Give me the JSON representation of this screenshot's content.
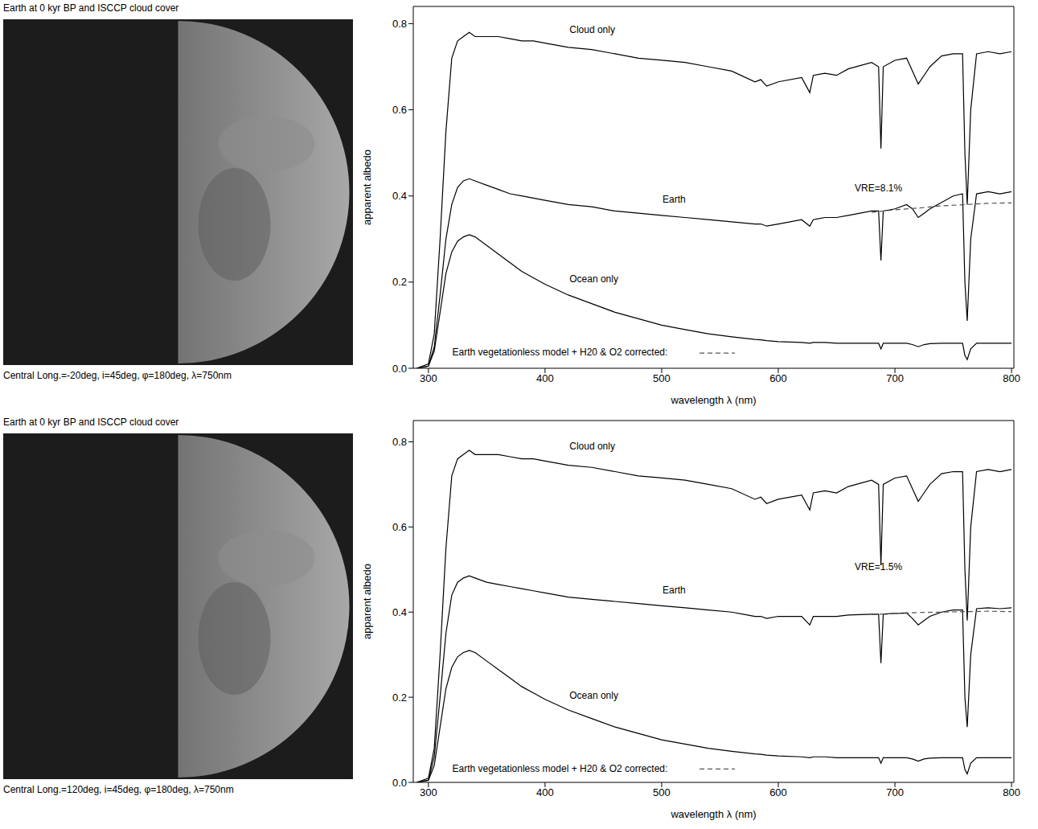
{
  "images": [
    {
      "title": "Earth at 0 kyr BP and ISCCP cloud cover",
      "caption": "Central Long.=-20deg, i=45deg, φ=180deg, λ=750nm"
    },
    {
      "title": "Earth at 0 kyr BP and ISCCP cloud cover",
      "caption": "Central Long.=120deg, i=45deg, φ=180deg, λ=750nm"
    }
  ],
  "chart_data": [
    {
      "type": "line",
      "x_label": "wavelength λ (nm)",
      "y_label": "apparent albedo",
      "xlim": [
        287,
        802
      ],
      "xticks": [
        300,
        400,
        500,
        600,
        700,
        800
      ],
      "ylim": [
        0,
        0.84
      ],
      "yticks": [
        {
          "value": 0,
          "label": "0.0"
        },
        0.2,
        0.4,
        0.6,
        0.8
      ],
      "grid": false,
      "annotations": [
        "VRE=8.1%"
      ],
      "x": [
        290,
        300,
        305,
        310,
        315,
        320,
        325,
        330,
        335,
        340,
        350,
        360,
        370,
        380,
        390,
        400,
        420,
        440,
        460,
        480,
        500,
        520,
        540,
        560,
        580,
        585,
        590,
        600,
        620,
        627,
        630,
        640,
        650,
        660,
        680,
        686,
        688,
        690,
        700,
        710,
        715,
        720,
        725,
        730,
        740,
        750,
        758,
        760,
        762,
        765,
        770,
        780,
        790,
        800
      ],
      "series": [
        {
          "name": "Cloud only",
          "color": "#000000",
          "line_style": "solid",
          "values": [
            0,
            0.01,
            0.08,
            0.3,
            0.55,
            0.72,
            0.76,
            0.77,
            0.78,
            0.77,
            0.77,
            0.77,
            0.765,
            0.76,
            0.76,
            0.755,
            0.745,
            0.74,
            0.73,
            0.72,
            0.715,
            0.71,
            0.7,
            0.69,
            0.665,
            0.67,
            0.655,
            0.665,
            0.675,
            0.64,
            0.68,
            0.685,
            0.68,
            0.695,
            0.71,
            0.7,
            0.51,
            0.7,
            0.715,
            0.72,
            0.69,
            0.66,
            0.68,
            0.7,
            0.725,
            0.73,
            0.73,
            0.5,
            0.38,
            0.6,
            0.73,
            0.735,
            0.73,
            0.735
          ]
        },
        {
          "name": "Earth",
          "color": "#000000",
          "line_style": "solid",
          "values": [
            0,
            0.005,
            0.05,
            0.17,
            0.3,
            0.38,
            0.42,
            0.435,
            0.44,
            0.435,
            0.425,
            0.415,
            0.405,
            0.4,
            0.395,
            0.39,
            0.38,
            0.375,
            0.365,
            0.36,
            0.355,
            0.35,
            0.345,
            0.34,
            0.335,
            0.335,
            0.33,
            0.335,
            0.345,
            0.33,
            0.345,
            0.35,
            0.35,
            0.355,
            0.365,
            0.365,
            0.25,
            0.365,
            0.37,
            0.38,
            0.37,
            0.35,
            0.36,
            0.37,
            0.385,
            0.4,
            0.405,
            0.2,
            0.11,
            0.3,
            0.405,
            0.41,
            0.405,
            0.41
          ]
        },
        {
          "name": "Ocean only",
          "color": "#000000",
          "line_style": "solid",
          "values": [
            0,
            0.005,
            0.04,
            0.13,
            0.22,
            0.27,
            0.295,
            0.305,
            0.31,
            0.305,
            0.285,
            0.265,
            0.245,
            0.225,
            0.21,
            0.195,
            0.17,
            0.15,
            0.13,
            0.115,
            0.1,
            0.09,
            0.08,
            0.073,
            0.067,
            0.066,
            0.064,
            0.062,
            0.06,
            0.058,
            0.06,
            0.06,
            0.058,
            0.058,
            0.058,
            0.058,
            0.045,
            0.058,
            0.058,
            0.058,
            0.055,
            0.05,
            0.055,
            0.057,
            0.058,
            0.058,
            0.058,
            0.03,
            0.02,
            0.045,
            0.058,
            0.058,
            0.058,
            0.058
          ]
        },
        {
          "name": "Earth vegetationless model + H20 & O2 corrected:",
          "color": "#555555",
          "line_style": "dashed",
          "values": [
            null,
            null,
            null,
            null,
            null,
            null,
            null,
            null,
            null,
            null,
            null,
            null,
            null,
            null,
            null,
            null,
            null,
            null,
            null,
            null,
            null,
            null,
            null,
            null,
            null,
            null,
            null,
            null,
            null,
            null,
            null,
            null,
            null,
            null,
            0.362,
            null,
            null,
            null,
            0.368,
            null,
            null,
            0.372,
            null,
            null,
            0.377,
            null,
            null,
            0.38,
            null,
            null,
            null,
            0.383,
            null,
            0.384
          ]
        }
      ]
    },
    {
      "type": "line",
      "x_label": "wavelength λ (nm)",
      "y_label": "apparent albedo",
      "xlim": [
        287,
        802
      ],
      "xticks": [
        300,
        400,
        500,
        600,
        700,
        800
      ],
      "ylim": [
        0,
        0.85
      ],
      "yticks": [
        {
          "value": 0,
          "label": "0.0"
        },
        0.2,
        0.4,
        0.6,
        0.8
      ],
      "grid": false,
      "annotations": [
        "VRE=1.5%"
      ],
      "x": [
        290,
        300,
        305,
        310,
        315,
        320,
        325,
        330,
        335,
        340,
        350,
        360,
        370,
        380,
        390,
        400,
        420,
        440,
        460,
        480,
        500,
        520,
        540,
        560,
        580,
        585,
        590,
        600,
        620,
        627,
        630,
        640,
        650,
        660,
        680,
        686,
        688,
        690,
        700,
        710,
        715,
        720,
        725,
        730,
        740,
        750,
        758,
        760,
        762,
        765,
        770,
        780,
        790,
        800
      ],
      "series": [
        {
          "name": "Cloud only",
          "color": "#000000",
          "line_style": "solid",
          "values": [
            0,
            0.01,
            0.08,
            0.3,
            0.55,
            0.72,
            0.76,
            0.77,
            0.78,
            0.77,
            0.77,
            0.77,
            0.765,
            0.76,
            0.76,
            0.755,
            0.745,
            0.74,
            0.73,
            0.72,
            0.715,
            0.71,
            0.7,
            0.69,
            0.665,
            0.67,
            0.655,
            0.665,
            0.675,
            0.64,
            0.68,
            0.685,
            0.68,
            0.695,
            0.71,
            0.7,
            0.51,
            0.7,
            0.715,
            0.72,
            0.69,
            0.66,
            0.68,
            0.7,
            0.725,
            0.73,
            0.73,
            0.5,
            0.38,
            0.6,
            0.73,
            0.735,
            0.73,
            0.735
          ]
        },
        {
          "name": "Earth",
          "color": "#000000",
          "line_style": "solid",
          "values": [
            0,
            0.005,
            0.06,
            0.2,
            0.35,
            0.44,
            0.47,
            0.48,
            0.485,
            0.48,
            0.47,
            0.465,
            0.46,
            0.455,
            0.45,
            0.445,
            0.435,
            0.43,
            0.425,
            0.42,
            0.415,
            0.41,
            0.405,
            0.4,
            0.39,
            0.39,
            0.385,
            0.39,
            0.39,
            0.37,
            0.39,
            0.39,
            0.39,
            0.393,
            0.395,
            0.395,
            0.28,
            0.395,
            0.397,
            0.398,
            0.385,
            0.37,
            0.38,
            0.39,
            0.4,
            0.405,
            0.405,
            0.2,
            0.13,
            0.3,
            0.408,
            0.41,
            0.408,
            0.41
          ]
        },
        {
          "name": "Ocean only",
          "color": "#000000",
          "line_style": "solid",
          "values": [
            0,
            0.005,
            0.04,
            0.13,
            0.22,
            0.27,
            0.295,
            0.305,
            0.31,
            0.305,
            0.285,
            0.265,
            0.245,
            0.225,
            0.21,
            0.195,
            0.17,
            0.15,
            0.13,
            0.115,
            0.1,
            0.09,
            0.08,
            0.073,
            0.067,
            0.066,
            0.064,
            0.062,
            0.06,
            0.058,
            0.06,
            0.06,
            0.058,
            0.058,
            0.058,
            0.058,
            0.045,
            0.058,
            0.058,
            0.058,
            0.055,
            0.05,
            0.055,
            0.057,
            0.058,
            0.058,
            0.058,
            0.03,
            0.02,
            0.045,
            0.058,
            0.058,
            0.058,
            0.058
          ]
        },
        {
          "name": "Earth vegetationless model + H20 & O2 corrected:",
          "color": "#555555",
          "line_style": "dashed",
          "values": [
            null,
            null,
            null,
            null,
            null,
            null,
            null,
            null,
            null,
            null,
            null,
            null,
            null,
            null,
            null,
            null,
            null,
            null,
            null,
            null,
            null,
            null,
            null,
            null,
            null,
            null,
            null,
            null,
            null,
            null,
            null,
            null,
            null,
            null,
            0.394,
            null,
            null,
            null,
            0.397,
            null,
            null,
            0.399,
            null,
            null,
            0.4,
            null,
            null,
            0.401,
            null,
            null,
            null,
            0.402,
            null,
            0.401
          ]
        }
      ]
    }
  ]
}
